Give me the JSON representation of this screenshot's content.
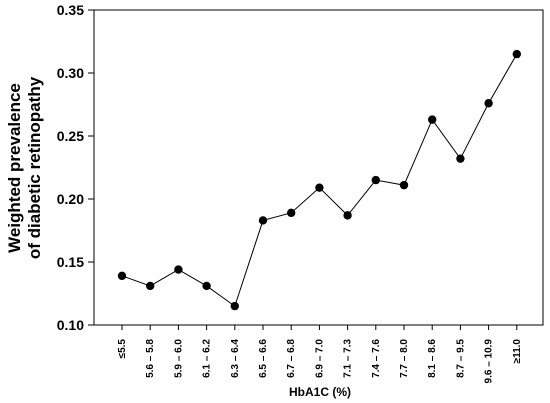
{
  "chart_data": {
    "type": "line",
    "title": "",
    "xlabel": "HbA1C (%)",
    "ylabel_lines": [
      "Weighted prevalence",
      "of diabetic retinopathy"
    ],
    "categories": [
      "≤5.5",
      "5.6 – 5.8",
      "5.9 – 6.0",
      "6.1 – 6.2",
      "6.3 – 6.4",
      "6.5 – 6.6",
      "6.7 – 6.8",
      "6.9 – 7.0",
      "7.1 – 7.3",
      "7.4 – 7.6",
      "7.7 – 8.0",
      "8.1 – 8.6",
      "8.7 – 9.5",
      "9.6 – 10.9",
      "≥11.0"
    ],
    "values": [
      0.139,
      0.131,
      0.144,
      0.131,
      0.115,
      0.183,
      0.189,
      0.209,
      0.187,
      0.215,
      0.211,
      0.263,
      0.232,
      0.276,
      0.315
    ],
    "ylim": [
      0.1,
      0.35
    ],
    "yticks": [
      "0.10",
      "0.15",
      "0.20",
      "0.25",
      "0.30",
      "0.35"
    ],
    "grid": false,
    "colors": {
      "line": "#000000",
      "marker": "#000000"
    }
  }
}
